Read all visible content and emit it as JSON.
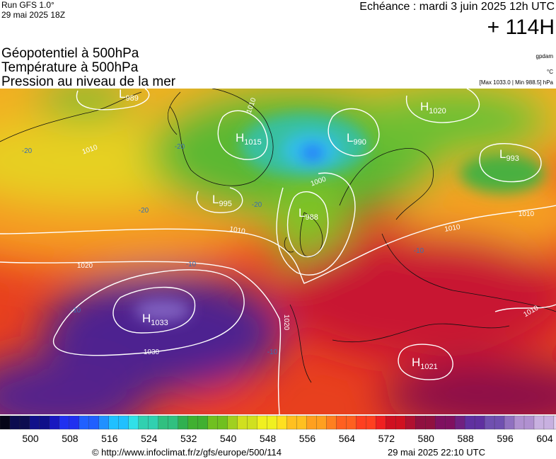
{
  "header": {
    "run": "Run GFS 1.0°",
    "run_date": "29 mai 2025 18Z",
    "forecast": "Echéance : mardi 3 juin 2025 12h UTC",
    "lead": "+ 114H"
  },
  "fields": [
    "Géopotentiel à 500hPa",
    "Température à 500hPa",
    "Pression au niveau de la mer"
  ],
  "units": {
    "geopotential": "gpdam",
    "temperature": "°C",
    "pressure": "[Max 1033.0 | Min 988.5] hPa"
  },
  "centers": [
    {
      "type": "L",
      "value": "989"
    },
    {
      "type": "H",
      "value": "1015"
    },
    {
      "type": "L",
      "value": "990"
    },
    {
      "type": "H",
      "value": "1020"
    },
    {
      "type": "L",
      "value": "993"
    },
    {
      "type": "L",
      "value": "995"
    },
    {
      "type": "L",
      "value": "988"
    },
    {
      "type": "H",
      "value": "1033"
    },
    {
      "type": "H",
      "value": "1021"
    }
  ],
  "isobar_labels": [
    "1010",
    "1010",
    "1000",
    "1010",
    "1020",
    "1010",
    "1030",
    "1020",
    "1010",
    "1010"
  ],
  "temperature_labels": [
    "-20",
    "-20",
    "-20",
    "-20",
    "-10",
    "-10",
    "-10",
    "-10"
  ],
  "colorbar": {
    "ticks": [
      500,
      508,
      516,
      524,
      532,
      540,
      548,
      556,
      564,
      572,
      580,
      588,
      596,
      604
    ]
  },
  "footer": {
    "source": "© http://www.infoclimat.fr/z/gfs/europe/500/114",
    "generated": "29 mai 2025 22:10 UTC"
  }
}
